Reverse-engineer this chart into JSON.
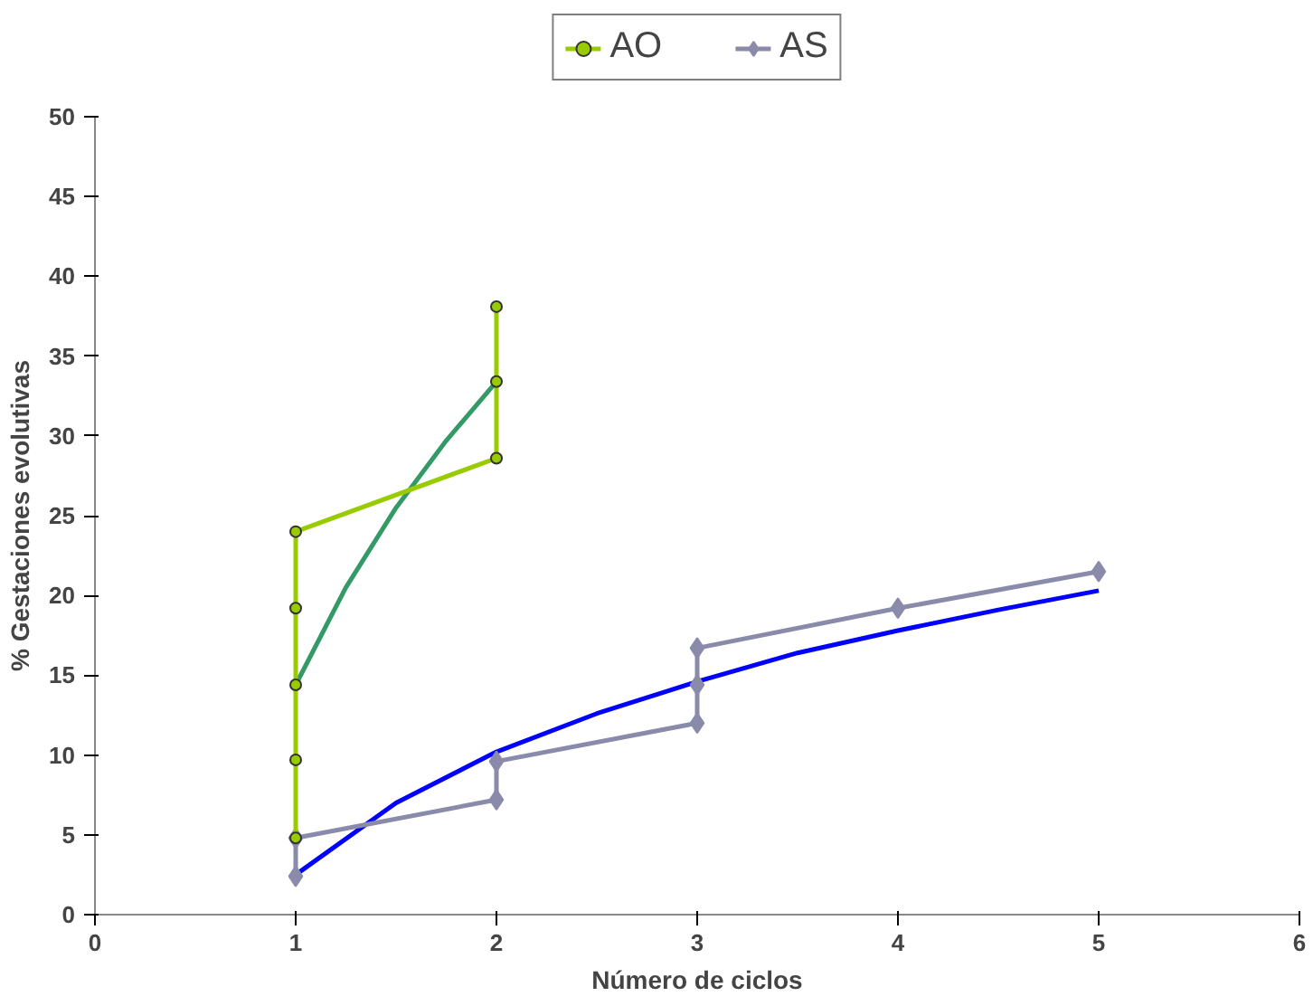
{
  "chart_data": {
    "type": "line",
    "xlabel": "Número de ciclos",
    "ylabel": "% Gestaciones evolutivas",
    "xlim": [
      0,
      6
    ],
    "xticks": [
      0,
      1,
      2,
      3,
      4,
      5,
      6
    ],
    "ylim": [
      0,
      50
    ],
    "yticks": [
      0,
      5,
      10,
      15,
      20,
      25,
      30,
      35,
      40,
      45,
      50
    ],
    "grid": false,
    "legend": "top",
    "series": [
      {
        "name": "AO",
        "color": "#99cc00",
        "marker": "circle",
        "x": [
          1,
          1,
          1,
          1,
          1,
          2,
          2,
          2
        ],
        "values": [
          4.8,
          9.7,
          14.4,
          19.2,
          24.0,
          28.6,
          33.4,
          38.1
        ]
      },
      {
        "name": "AS",
        "color": "#8a8aaa",
        "marker": "diamond",
        "x": [
          1,
          1,
          2,
          2,
          3,
          3,
          3,
          4,
          5
        ],
        "values": [
          2.4,
          4.8,
          7.2,
          9.6,
          12.0,
          14.4,
          16.7,
          19.2,
          21.5
        ]
      },
      {
        "color": "#339966",
        "marker": "none",
        "x": [
          1,
          1.25,
          1.5,
          1.75,
          2
        ],
        "values": [
          14.4,
          20.5,
          25.5,
          29.7,
          33.4
        ]
      },
      {
        "color": "#0000ff",
        "marker": "none",
        "x": [
          1,
          1.5,
          2,
          2.5,
          3,
          3.5,
          4,
          4.5,
          5
        ],
        "values": [
          2.5,
          7.0,
          10.2,
          12.6,
          14.6,
          16.4,
          17.8,
          19.1,
          20.3
        ]
      }
    ]
  }
}
